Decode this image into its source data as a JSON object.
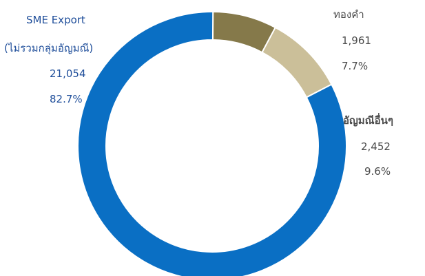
{
  "chart_data": {
    "type": "donut",
    "title": "",
    "categories": [
      "SME Export (ไม่รวมกลุ่มอัญมณี)",
      "ทองคำ",
      "อัญมณีอื่นๆ"
    ],
    "values": [
      21054,
      1961,
      2452
    ],
    "percents": [
      "82.7%",
      "7.7%",
      "9.6%"
    ],
    "value_labels": [
      "21,054",
      "1,961",
      "2,452"
    ],
    "colors": [
      "#0a6fc4",
      "#85794a",
      "#cbbf99"
    ]
  },
  "labels": {
    "sme_line1": "SME Export",
    "sme_line2": "(ไม่รวมกลุ่มอัญมณี)",
    "sme_value": "21,054",
    "sme_percent": "82.7%",
    "gold_name": "ทองคำ",
    "gold_value": "1,961",
    "gold_percent": "7.7%",
    "other_name": "อัญมณีอื่นๆ",
    "other_value": "2,452",
    "other_percent": "9.6%"
  }
}
